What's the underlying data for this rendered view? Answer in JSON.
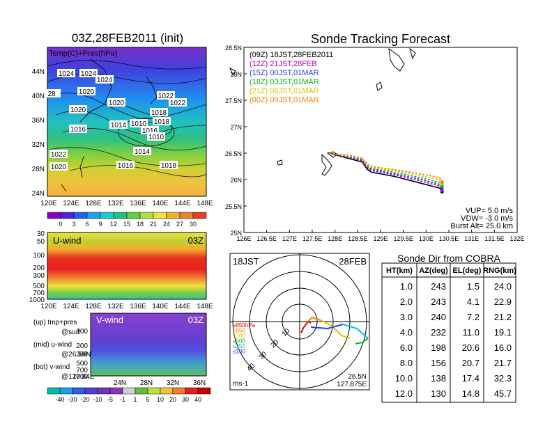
{
  "weather_map": {
    "title": "03Z,28FEB2011 (init)",
    "panel_label": "Temp(C)+Pres(hPa)",
    "lat_labels": [
      "44N",
      "40N",
      "36N",
      "32N",
      "28N",
      "24N"
    ],
    "lon_labels": [
      "120E",
      "124E",
      "128E",
      "132E",
      "136E",
      "140E",
      "144E",
      "148E"
    ],
    "isobars": [
      "1024",
      "1024",
      "1024",
      "1020",
      "1022",
      "1020",
      "1020",
      "1022",
      "1018",
      "1016",
      "1014",
      "1010",
      "1018",
      "1016",
      "1010",
      "1014",
      "1016",
      "1018",
      "1022",
      "1020",
      "28"
    ],
    "colorbar_ticks": [
      "0",
      "3",
      "6",
      "9",
      "12",
      "15",
      "18",
      "21",
      "24",
      "27",
      "30"
    ]
  },
  "u_wind": {
    "label": "U-wind",
    "time": "03Z",
    "p_labels": [
      "30",
      "50",
      "100",
      "200",
      "300",
      "500",
      "700",
      "1000"
    ],
    "lon_labels": [
      "120E",
      "124E",
      "128E",
      "132E",
      "136E",
      "140E",
      "144E",
      "148E"
    ]
  },
  "v_wind": {
    "label": "V-wind",
    "time": "03Z",
    "p_labels": [
      "100",
      "200",
      "300",
      "500",
      "700",
      "1000"
    ],
    "lat_labels": [
      "24N",
      "28N",
      "32N",
      "36N"
    ],
    "colorbar_ticks": [
      "-40",
      "-30",
      "-20",
      "-10",
      "-5",
      "-1",
      "1",
      "5",
      "10",
      "20",
      "30",
      "40"
    ]
  },
  "legend_notes": [
    "(up) tmp+pres",
    "@surf",
    "(mid) u-wind",
    "@26.50N",
    "(bot) v-wind",
    "@127.84E"
  ],
  "track": {
    "title": "Sonde Tracking Forecast",
    "lat_labels": [
      "28.5N",
      "28N",
      "27.5N",
      "27N",
      "26.5N",
      "26N",
      "25.5N",
      "25N"
    ],
    "lon_labels": [
      "126E",
      "126.5E",
      "127E",
      "127.5E",
      "128E",
      "128.5E",
      "129E",
      "129.5E",
      "130E",
      "130.5E",
      "131E",
      "131.5E",
      "132E"
    ],
    "legend": [
      {
        "text": "(09Z)  18JST,28FEB2011",
        "color": "#000000"
      },
      {
        "text": "(12Z)  21JST,28FEB",
        "color": "#c000c0"
      },
      {
        "text": "(15Z)  00JST,01MAR",
        "color": "#2040ff"
      },
      {
        "text": "(18Z)  03JST,01MAR",
        "color": "#10b010"
      },
      {
        "text": "(21Z)  06JST,01MAR",
        "color": "#e0c000"
      },
      {
        "text": "(00Z)  09JST,01MAR",
        "color": "#ff8000"
      }
    ],
    "params": [
      "VUP=  5.0 m/s",
      "VDW= -3.0 m/s",
      "Burst Alt= 25.0 km"
    ]
  },
  "polar": {
    "time": "18JST",
    "date": "28FEB",
    "unit": "ms-1",
    "rings": [
      "10",
      "20",
      "30",
      "40"
    ],
    "level_legend": [
      {
        "text": "≥850hPa",
        "color": "#e00000"
      },
      {
        "text": "≤850",
        "color": "#ff8000"
      },
      {
        "text": "≤700",
        "color": "#e0c000"
      },
      {
        "text": "≤500",
        "color": "#10b010"
      },
      {
        "text": "≤250",
        "color": "#00c0e0"
      },
      {
        "text": "≤100",
        "color": "#2040ff"
      }
    ],
    "loc1": "26.5N",
    "loc2": "127.875E"
  },
  "table": {
    "title": "Sonde Dir from COBRA",
    "headers": [
      "HT(km)",
      "AZ(deg)",
      "EL(deg)",
      "RNG(km)"
    ],
    "rows": [
      [
        "1.0",
        "243",
        "1.5",
        "24.0"
      ],
      [
        "2.0",
        "243",
        "4.1",
        "22.9"
      ],
      [
        "3.0",
        "240",
        "7.2",
        "21.2"
      ],
      [
        "4.0",
        "232",
        "11.0",
        "19.1"
      ],
      [
        "6.0",
        "198",
        "20.6",
        "16.0"
      ],
      [
        "8.0",
        "156",
        "20.7",
        "21.7"
      ],
      [
        "10.0",
        "138",
        "17.4",
        "32.3"
      ],
      [
        "12.0",
        "130",
        "14.8",
        "45.7"
      ]
    ]
  },
  "chart_data": [
    {
      "type": "line",
      "title": "Sonde Tracking Forecast",
      "xlim": [
        126,
        132
      ],
      "ylim": [
        25,
        28.5
      ],
      "series": [
        {
          "name": "(09Z)  18JST,28FEB2011",
          "x": [
            127.875,
            128.3,
            128.6,
            128.7,
            128.8,
            129.3,
            129.8,
            130.3,
            130.35
          ],
          "y": [
            26.5,
            26.4,
            26.33,
            26.2,
            26.14,
            26.06,
            25.95,
            25.84,
            25.77
          ]
        },
        {
          "name": "(12Z)  21JST,28FEB",
          "x": [
            127.875,
            128.3,
            128.6,
            128.7,
            128.8,
            129.3,
            129.8,
            130.3,
            130.35
          ],
          "y": [
            26.5,
            26.42,
            26.35,
            26.22,
            26.17,
            26.09,
            25.99,
            25.88,
            25.79
          ]
        },
        {
          "name": "(15Z)  00JST,01MAR",
          "x": [
            127.875,
            128.3,
            128.6,
            128.7,
            128.8,
            129.3,
            129.8,
            130.3,
            130.35
          ],
          "y": [
            26.5,
            26.43,
            26.37,
            26.24,
            26.19,
            26.11,
            26.02,
            25.91,
            25.83
          ]
        },
        {
          "name": "(18Z)  03JST,01MAR",
          "x": [
            127.875,
            128.3,
            128.6,
            128.7,
            128.8,
            129.3,
            129.8,
            130.3,
            130.35
          ],
          "y": [
            26.5,
            26.44,
            26.39,
            26.26,
            26.21,
            26.14,
            26.05,
            25.95,
            25.87
          ]
        },
        {
          "name": "(21Z)  06JST,01MAR",
          "x": [
            127.875,
            128.3,
            128.6,
            128.7,
            128.8,
            129.3,
            129.8,
            130.3,
            130.35
          ],
          "y": [
            26.5,
            26.45,
            26.4,
            26.28,
            26.23,
            26.17,
            26.09,
            26.0,
            25.92
          ]
        },
        {
          "name": "(00Z)  09JST,01MAR",
          "x": [
            127.875,
            128.3,
            128.6,
            128.7,
            128.8,
            129.3,
            129.8,
            130.3,
            130.35
          ],
          "y": [
            26.5,
            26.46,
            26.41,
            26.3,
            26.25,
            26.19,
            26.12,
            26.04,
            25.95
          ]
        }
      ]
    },
    {
      "type": "table",
      "title": "Sonde Dir from COBRA",
      "columns": [
        "HT(km)",
        "AZ(deg)",
        "EL(deg)",
        "RNG(km)"
      ]
    }
  ]
}
